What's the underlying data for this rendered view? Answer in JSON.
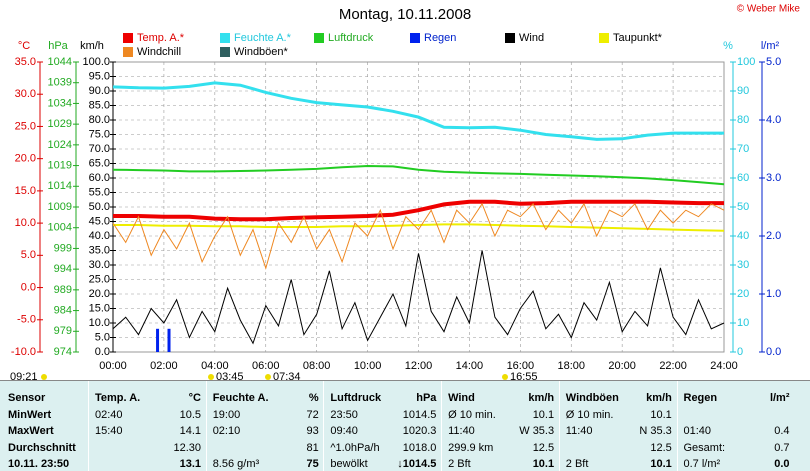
{
  "chart_data": {
    "type": "line",
    "title": "Montag, 10.11.2008",
    "credit": "© Weber Mike",
    "axis_labels": {
      "y": "°C",
      "y3": "hPa",
      "y4": "km/h",
      "y2": "%",
      "y5": "l/m²"
    },
    "xlim": [
      0,
      24
    ],
    "xticks": [
      {
        "value": 0,
        "label": "00:00"
      },
      {
        "value": 2,
        "label": "02:00"
      },
      {
        "value": 4,
        "label": "04:00"
      },
      {
        "value": 6,
        "label": "06:00"
      },
      {
        "value": 8,
        "label": "08:00"
      },
      {
        "value": 10,
        "label": "10:00"
      },
      {
        "value": 12,
        "label": "12:00"
      },
      {
        "value": 14,
        "label": "14:00"
      },
      {
        "value": 16,
        "label": "16:00"
      },
      {
        "value": 18,
        "label": "18:00"
      },
      {
        "value": 20,
        "label": "20:00"
      },
      {
        "value": 22,
        "label": "22:00"
      },
      {
        "value": 24,
        "label": "24:00"
      }
    ],
    "ylim": [
      -10,
      35
    ],
    "yticks": [
      {
        "value": -10,
        "label": "-10.0"
      },
      {
        "value": -5,
        "label": "-5.0"
      },
      {
        "value": 0,
        "label": "0.0"
      },
      {
        "value": 5,
        "label": "5.0"
      },
      {
        "value": 10,
        "label": "10.0"
      },
      {
        "value": 15,
        "label": "15.0"
      },
      {
        "value": 20,
        "label": "20.0"
      },
      {
        "value": 25,
        "label": "25.0"
      },
      {
        "value": 30,
        "label": "30.0"
      },
      {
        "value": 35,
        "label": "35.0"
      }
    ],
    "y2lim": [
      0,
      100
    ],
    "y2ticks": [
      0,
      10,
      20,
      30,
      40,
      50,
      60,
      70,
      80,
      90,
      100
    ],
    "y3lim": [
      974,
      1044
    ],
    "y3ticks": [
      974,
      979,
      984,
      989,
      994,
      999,
      1004,
      1009,
      1014,
      1019,
      1024,
      1029,
      1034,
      1039,
      1044
    ],
    "y4lim": [
      0,
      100
    ],
    "y4ticks": [
      {
        "value": 0,
        "label": "0.0"
      },
      {
        "value": 5,
        "label": "5.0"
      },
      {
        "value": 10,
        "label": "10.0"
      },
      {
        "value": 15,
        "label": "15.0"
      },
      {
        "value": 20,
        "label": "20.0"
      },
      {
        "value": 25,
        "label": "25.0"
      },
      {
        "value": 30,
        "label": "30.0"
      },
      {
        "value": 35,
        "label": "35.0"
      },
      {
        "value": 40,
        "label": "40.0"
      },
      {
        "value": 45,
        "label": "45.0"
      },
      {
        "value": 50,
        "label": "50.0"
      },
      {
        "value": 55,
        "label": "55.0"
      },
      {
        "value": 60,
        "label": "60.0"
      },
      {
        "value": 65,
        "label": "65.0"
      },
      {
        "value": 70,
        "label": "70.0"
      },
      {
        "value": 75,
        "label": "75.0"
      },
      {
        "value": 80,
        "label": "80.0"
      },
      {
        "value": 85,
        "label": "85.0"
      },
      {
        "value": 90,
        "label": "90.0"
      },
      {
        "value": 95,
        "label": "95.0"
      },
      {
        "value": 100,
        "label": "100.0"
      }
    ],
    "y5lim": [
      0,
      5
    ],
    "y5ticks": [
      {
        "value": 0,
        "label": "0.0"
      },
      {
        "value": 1,
        "label": "1.0"
      },
      {
        "value": 2,
        "label": "2.0"
      },
      {
        "value": 3,
        "label": "3.0"
      },
      {
        "value": 4,
        "label": "4.0"
      },
      {
        "value": 5,
        "label": "5.0"
      }
    ],
    "grid": true,
    "series": [
      {
        "name": "Temp. A.*",
        "color": "#ee0000",
        "axis": "y",
        "width": 4,
        "x": [
          0,
          1,
          2,
          3,
          4,
          5,
          6,
          7,
          8,
          9,
          10,
          11,
          12,
          13,
          14,
          15,
          16,
          17,
          18,
          19,
          20,
          21,
          22,
          23,
          24
        ],
        "values": [
          11.1,
          11.1,
          11.0,
          11.0,
          10.7,
          10.6,
          10.6,
          10.8,
          10.9,
          11.0,
          11.1,
          11.3,
          12.0,
          12.9,
          13.3,
          13.3,
          13.0,
          13.1,
          13.3,
          13.3,
          13.3,
          13.3,
          13.2,
          13.1,
          13.1
        ]
      },
      {
        "name": "Feuchte A.*",
        "color": "#33e0ee",
        "axis": "y2",
        "width": 3,
        "x": [
          0,
          1,
          2,
          3,
          4,
          5,
          6,
          7,
          8,
          9,
          10,
          11,
          12,
          13,
          14,
          15,
          16,
          17,
          18,
          19,
          20,
          21,
          22,
          23,
          24
        ],
        "values": [
          91.4,
          91.1,
          91.0,
          91.6,
          92.8,
          92.0,
          89.5,
          87.5,
          86.0,
          85.2,
          84.5,
          83.0,
          81.0,
          77.5,
          77.3,
          77.5,
          76.5,
          75.0,
          74.2,
          73.3,
          73.5,
          74.8,
          75.5,
          75.5,
          75.5
        ]
      },
      {
        "name": "Luftdruck",
        "color": "#22cc22",
        "axis": "y3",
        "width": 2,
        "x": [
          0,
          1,
          2,
          3,
          4,
          5,
          6,
          7,
          8,
          9,
          10,
          11,
          12,
          13,
          14,
          15,
          16,
          17,
          18,
          19,
          20,
          21,
          22,
          23,
          24
        ],
        "values": [
          1018.0,
          1017.9,
          1017.8,
          1017.6,
          1017.6,
          1017.7,
          1017.8,
          1018.0,
          1018.2,
          1018.6,
          1018.9,
          1018.8,
          1018.0,
          1017.5,
          1017.3,
          1017.1,
          1017.0,
          1016.8,
          1016.6,
          1016.4,
          1016.2,
          1015.9,
          1015.5,
          1015.0,
          1014.5
        ]
      },
      {
        "name": "Regen",
        "color": "#0022ee",
        "axis": "y5",
        "kind": "bar",
        "x": [
          1.75,
          2.2
        ],
        "values": [
          0.4,
          0.4
        ]
      },
      {
        "name": "Wind",
        "color": "#000000",
        "axis": "y4",
        "width": 1,
        "x": [
          0,
          0.5,
          1,
          1.5,
          2,
          2.5,
          3,
          3.5,
          4,
          4.5,
          5,
          5.5,
          6,
          6.5,
          7,
          7.5,
          8,
          8.5,
          9,
          9.5,
          10,
          10.5,
          11,
          11.5,
          12,
          12.5,
          13,
          13.5,
          14,
          14.5,
          15,
          15.5,
          16,
          16.5,
          17,
          17.5,
          18,
          18.5,
          19,
          19.5,
          20,
          20.5,
          21,
          21.5,
          22,
          22.5,
          23,
          23.5,
          24
        ],
        "values": [
          8,
          12,
          6,
          15,
          10,
          18,
          5,
          14,
          7,
          22,
          11,
          3,
          16,
          9,
          25,
          6,
          13,
          28,
          8,
          17,
          4,
          12,
          20,
          9,
          34,
          14,
          7,
          19,
          10,
          35,
          12,
          6,
          15,
          21,
          8,
          13,
          5,
          17,
          11,
          24,
          7,
          14,
          9,
          29,
          12,
          6,
          18,
          8,
          10
        ]
      },
      {
        "name": "Taupunkt*",
        "color": "#eeee00",
        "axis": "y",
        "width": 2,
        "x": [
          0,
          1,
          2,
          3,
          4,
          5,
          6,
          7,
          8,
          9,
          10,
          11,
          12,
          13,
          14,
          15,
          16,
          17,
          18,
          19,
          20,
          21,
          22,
          23,
          24
        ],
        "values": [
          9.7,
          9.7,
          9.6,
          9.6,
          9.5,
          9.5,
          9.4,
          9.4,
          9.4,
          9.5,
          9.5,
          9.6,
          9.7,
          9.8,
          9.8,
          9.7,
          9.6,
          9.5,
          9.4,
          9.3,
          9.2,
          9.1,
          9.0,
          8.9,
          8.8
        ]
      },
      {
        "name": "Windchill",
        "color": "#ee8822",
        "axis": "y",
        "width": 1,
        "x": [
          0,
          0.5,
          1,
          1.5,
          2,
          2.5,
          3,
          3.5,
          4,
          4.5,
          5,
          5.5,
          6,
          6.5,
          7,
          7.5,
          8,
          8.5,
          9,
          9.5,
          10,
          10.5,
          11,
          11.5,
          12,
          12.5,
          13,
          13.5,
          14,
          14.5,
          15,
          15.5,
          16,
          16.5,
          17,
          17.5,
          18,
          18.5,
          19,
          19.5,
          20,
          20.5,
          21,
          21.5,
          22,
          22.5,
          23,
          23.5,
          24
        ],
        "values": [
          10,
          7,
          11,
          5,
          9,
          6,
          10,
          4,
          8,
          11,
          5,
          9,
          3,
          10,
          7,
          11,
          6,
          9,
          4,
          10,
          8,
          12,
          6,
          11,
          9,
          12,
          7,
          12,
          10,
          13,
          8,
          12,
          11,
          13,
          9,
          12,
          10,
          13,
          8,
          12,
          11,
          13,
          9,
          12,
          10,
          12,
          11,
          13,
          12
        ]
      },
      {
        "name": "Windböen*",
        "color": "#2f5f5f",
        "axis": "y4",
        "width": 1,
        "x": [],
        "values": []
      }
    ],
    "markers": [
      "09:21",
      "03:45",
      "07:34",
      "16:55"
    ]
  },
  "table": {
    "header": [
      "Sensor",
      "Temp. A.",
      "°C",
      "Feuchte A.",
      "%",
      "Luftdruck",
      "hPa",
      "Wind",
      "km/h",
      "Windböen",
      "km/h",
      "Regen",
      "l/m²"
    ],
    "rows": [
      [
        "MinWert",
        "02:40",
        "10.5",
        "19:00",
        "72",
        "23:50",
        "1014.5",
        "Ø 10 min.",
        "10.1",
        "Ø 10 min.",
        "10.1",
        null,
        null
      ],
      [
        "MaxWert",
        "15:40",
        "14.1",
        "02:10",
        "93",
        "09:40",
        "1020.3",
        "11:40",
        "W 35.3",
        "11:40",
        "N 35.3",
        "01:40",
        "0.4"
      ],
      [
        "Durchschnitt",
        null,
        "12.30",
        null,
        "81",
        "^1.0hPa/h",
        "1018.0",
        "299.9 km",
        "12.5",
        null,
        "12.5",
        "Gesamt:",
        "0.7"
      ],
      [
        "10.11. 23:50",
        null,
        "13.1",
        "8.56 g/m³",
        "75",
        "bewölkt",
        "↓1014.5",
        "2 Bft",
        "10.1",
        "2 Bft",
        "10.1",
        "0.7 l/m²",
        "0.0"
      ]
    ]
  }
}
